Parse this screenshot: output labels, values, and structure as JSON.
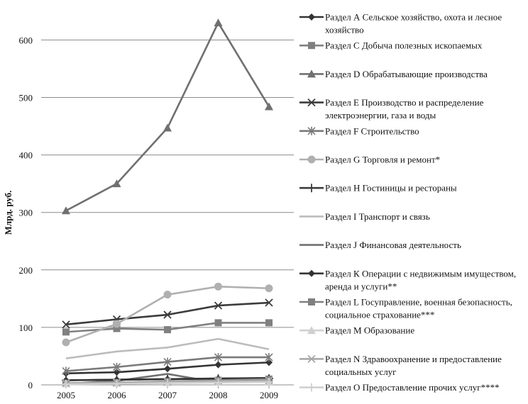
{
  "chart_data": {
    "type": "line",
    "title": "",
    "xlabel": "",
    "ylabel": "Млрд. руб.",
    "x": [
      2005,
      2006,
      2007,
      2008,
      2009
    ],
    "xticks": [
      "2005",
      "2006",
      "2007",
      "2008",
      "2009"
    ],
    "yticks": [
      "0",
      "100",
      "200",
      "300",
      "400",
      "500",
      "600"
    ],
    "ylim": [
      0,
      650
    ],
    "grid": "horizontal",
    "legend_position": "right",
    "series": [
      {
        "name": "Раздел А Сельское хозяйство, охота и лесное хозяйство",
        "values": [
          20,
          22,
          28,
          35,
          39
        ],
        "color": "#333333",
        "marker": "diamond"
      },
      {
        "name": "Раздел С Добыча полезных ископаемых",
        "values": [
          92,
          98,
          96,
          108,
          108
        ],
        "color": "#808080",
        "marker": "square"
      },
      {
        "name": "Раздел D Обрабатывающие производства",
        "values": [
          303,
          350,
          447,
          630,
          484
        ],
        "color": "#707070",
        "marker": "triangle"
      },
      {
        "name": "Раздел Е Производство и распределение электроэнергии, газа и воды",
        "values": [
          105,
          114,
          122,
          138,
          143
        ],
        "color": "#3c3c3c",
        "marker": "x"
      },
      {
        "name": "Раздел F Строительство",
        "values": [
          24,
          31,
          40,
          48,
          48
        ],
        "color": "#7a7a7a",
        "marker": "star"
      },
      {
        "name": "Раздел G Торговля и ремонт*",
        "values": [
          74,
          106,
          157,
          171,
          168
        ],
        "color": "#b0b0b0",
        "marker": "circle"
      },
      {
        "name": "Раздел Н Гостиницы и рестораны",
        "values": [
          8,
          9,
          10,
          11,
          11
        ],
        "color": "#3c3c3c",
        "marker": "plus"
      },
      {
        "name": "Раздел I Транспорт и связь",
        "values": [
          46,
          58,
          65,
          80,
          62
        ],
        "color": "#bcbcbc",
        "marker": "none"
      },
      {
        "name": "Раздел J Финансовая деятельность",
        "values": [
          2,
          7,
          19,
          4,
          9
        ],
        "color": "#707070",
        "marker": "none"
      },
      {
        "name": "Раздел К Операции с недвижимым имуществом, аренда и услуги**",
        "values": [
          8,
          9,
          10,
          11,
          12
        ],
        "color": "#333333",
        "marker": "diamond"
      },
      {
        "name": "Раздел L Госуправление, военная безопасность, социальное страхование***",
        "values": [
          3,
          4,
          6,
          8,
          10
        ],
        "color": "#808080",
        "marker": "square"
      },
      {
        "name": "Раздел М Образование",
        "values": [
          2,
          3,
          4,
          5,
          6
        ],
        "color": "#d0d0d0",
        "marker": "triangle"
      },
      {
        "name": "Раздел N Здравоохранение и предоставление социальных услуг",
        "values": [
          3,
          4,
          6,
          7,
          8
        ],
        "color": "#a8a8a8",
        "marker": "x"
      },
      {
        "name": "Раздел О Предоставление прочих услуг****",
        "values": [
          1,
          2,
          3,
          4,
          5
        ],
        "color": "#d0d0d0",
        "marker": "plus"
      }
    ]
  }
}
